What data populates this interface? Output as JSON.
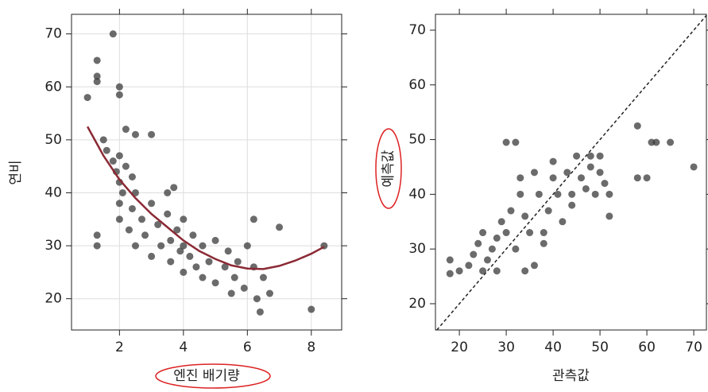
{
  "chart_data": [
    {
      "type": "scatter",
      "x_label": "엔진 배기량",
      "y_label": "연비",
      "color": "#3a3a3a",
      "xlim": [
        0.5,
        8.95
      ],
      "ylim": [
        14.1,
        73.7
      ],
      "xticks": [
        2,
        4,
        6,
        8
      ],
      "yticks": [
        20,
        30,
        40,
        50,
        60,
        70
      ],
      "grid": true,
      "x": [
        1.0,
        1.3,
        1.3,
        1.3,
        1.3,
        1.3,
        1.8,
        2.0,
        2.0,
        2.2,
        2.5,
        3.0,
        1.5,
        1.6,
        1.8,
        1.9,
        2.0,
        2.0,
        2.0,
        2.0,
        2.1,
        2.2,
        2.3,
        2.4,
        2.4,
        2.5,
        2.5,
        2.7,
        2.8,
        3.0,
        3.0,
        3.2,
        3.3,
        3.5,
        3.5,
        3.6,
        3.6,
        3.7,
        3.8,
        3.9,
        4.0,
        4.0,
        4.0,
        4.2,
        4.3,
        4.4,
        4.6,
        4.6,
        4.8,
        5.0,
        5.0,
        5.3,
        5.4,
        5.5,
        5.6,
        5.7,
        5.9,
        6.0,
        6.2,
        6.2,
        6.3,
        6.4,
        6.5,
        6.7,
        7.0,
        8.0,
        8.4
      ],
      "values": [
        58,
        65,
        62,
        61,
        32,
        30,
        70,
        60,
        58.5,
        52,
        51,
        51,
        50,
        48,
        46,
        44,
        47,
        42,
        38,
        35,
        40,
        45,
        33,
        43,
        37,
        30,
        40,
        35,
        32,
        38,
        28,
        34,
        30,
        40,
        36,
        31,
        27,
        41,
        33,
        29,
        35,
        30,
        25,
        28,
        32,
        26,
        30,
        24,
        27,
        31,
        23,
        26,
        29,
        21,
        24,
        27,
        22,
        30,
        35,
        26,
        20,
        17.5,
        24,
        21,
        33.5,
        18,
        30
      ],
      "curve": {
        "color": "#8b2a35",
        "x": [
          1.0,
          1.5,
          2.0,
          2.5,
          3.0,
          3.5,
          4.0,
          4.5,
          5.0,
          5.5,
          6.0,
          6.5,
          7.0,
          7.5,
          8.0,
          8.4
        ],
        "values": [
          52.5,
          47,
          42.5,
          39,
          36,
          33.5,
          31,
          29,
          27.5,
          26.3,
          25.7,
          25.6,
          26.2,
          27.2,
          28.5,
          29.8
        ]
      }
    },
    {
      "type": "scatter",
      "x_label": "관측값",
      "y_label": "예측값",
      "color": "#3a3a3a",
      "diagonal": true,
      "xlim": [
        14.9,
        72.7
      ],
      "ylim": [
        15.2,
        72.9
      ],
      "xticks": [
        20,
        30,
        40,
        50,
        60,
        70
      ],
      "yticks": [
        20,
        30,
        40,
        50,
        60,
        70
      ],
      "grid": false,
      "x": [
        18,
        18,
        20,
        22,
        23,
        24,
        25,
        25,
        26,
        27,
        28,
        28,
        29,
        30,
        32,
        30,
        31,
        32,
        33,
        33,
        34,
        35,
        36,
        36,
        37,
        38,
        39,
        40,
        40,
        41,
        42,
        43,
        44,
        45,
        46,
        47,
        48,
        49,
        50,
        50,
        51,
        52,
        52,
        58,
        58,
        60,
        61,
        62,
        65,
        70,
        34,
        38,
        44,
        48
      ],
      "values": [
        28,
        25.5,
        26,
        27,
        29,
        31,
        26,
        33,
        28,
        30,
        32,
        26,
        35,
        49.5,
        49.5,
        33,
        37,
        30,
        40,
        43,
        36,
        33,
        44,
        27,
        40,
        33,
        37,
        46,
        43,
        40,
        35,
        44,
        38,
        47,
        43,
        41,
        45,
        40,
        44,
        47,
        42,
        36,
        40,
        52.5,
        43,
        43,
        49.5,
        49.5,
        49.5,
        45,
        26,
        31,
        40,
        47
      ]
    }
  ]
}
